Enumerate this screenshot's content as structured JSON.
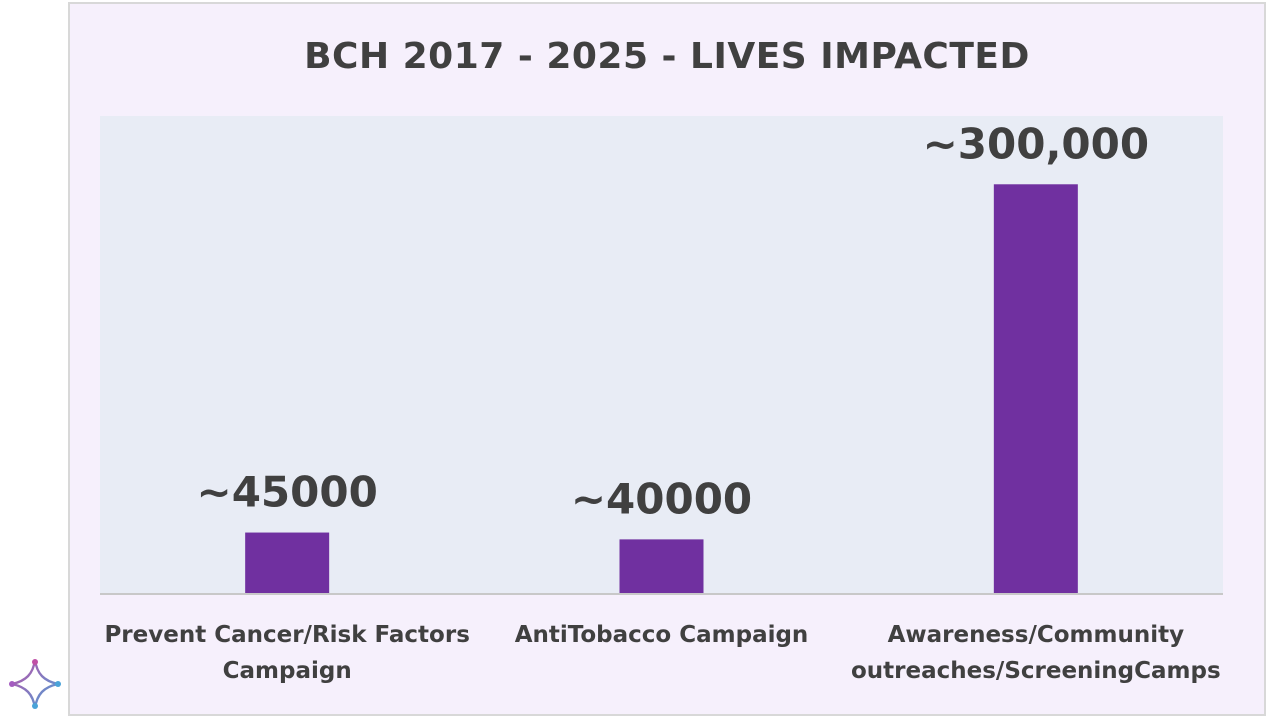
{
  "chart_data": {
    "type": "bar",
    "title": "BCH 2017 - 2025 - LIVES IMPACTED",
    "categories": [
      [
        "Prevent Cancer/Risk Factors",
        "Campaign"
      ],
      [
        "AntiTobacco Campaign"
      ],
      [
        "Awareness/Community",
        "outreaches/ScreeningCamps"
      ]
    ],
    "values": [
      45000,
      40000,
      300000
    ],
    "data_labels": [
      "~45000",
      "~40000",
      "~300,000"
    ],
    "ylim": [
      0,
      350000
    ],
    "grid": false,
    "legend": "none"
  },
  "colors": {
    "bar": "#7030a0",
    "plot_background": "#e8ecf5",
    "frame_background": "#f6f0fc",
    "text": "#404040",
    "axis": "#c8c8c8"
  },
  "logo": {
    "icon": "four-point-star-logo-icon"
  }
}
